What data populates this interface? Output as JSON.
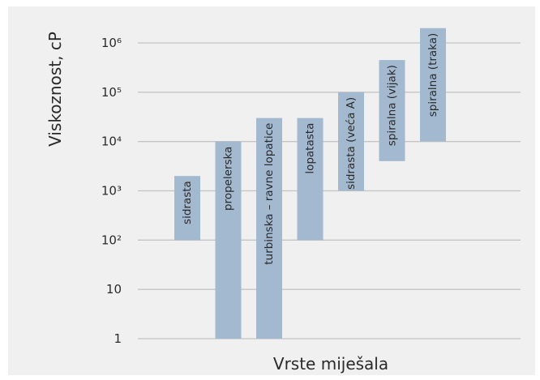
{
  "chart_data": {
    "type": "bar",
    "subtype": "floating-range",
    "ylabel": "Viskoznost, cP",
    "xlabel": "Vrste miješala",
    "yscale": "log",
    "ylim": [
      1,
      1000000
    ],
    "grid": true,
    "y_ticks": [
      {
        "value": 1,
        "label": "1"
      },
      {
        "value": 10,
        "label": "10"
      },
      {
        "value": 100,
        "label": "10²"
      },
      {
        "value": 1000,
        "label": "10³"
      },
      {
        "value": 10000,
        "label": "10⁴"
      },
      {
        "value": 100000,
        "label": "10⁵"
      },
      {
        "value": 1000000,
        "label": "10⁶"
      }
    ],
    "categories": [
      "sidrasta",
      "propelerska",
      "turbinska – ravne lopatice",
      "lopatasta",
      "sidrasta (veća A)",
      "spiralna (vijak)",
      "spiralna (traka)"
    ],
    "ranges": [
      [
        100,
        2000
      ],
      [
        1,
        10000
      ],
      [
        1,
        30000
      ],
      [
        100,
        30000
      ],
      [
        1000,
        100000
      ],
      [
        4000,
        450000
      ],
      [
        10000,
        2000000
      ]
    ],
    "bar_color": "#a3b9d0",
    "grid_color": "#c4c4c4",
    "background_color": "#f0f0f0"
  }
}
